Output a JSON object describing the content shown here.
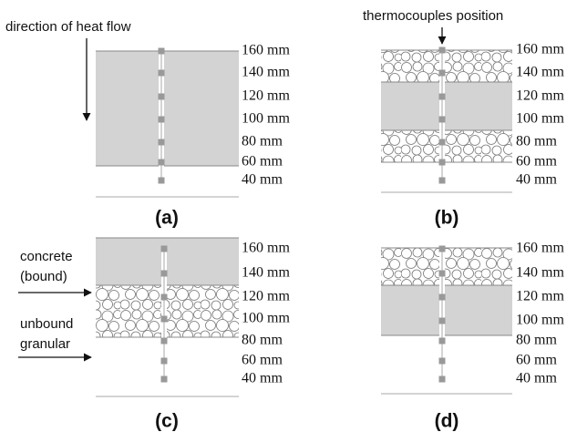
{
  "annotations": {
    "heat_flow": "direction of heat flow",
    "thermocouples": "thermocouples position",
    "concrete_1": "concrete",
    "concrete_2": "(bound)",
    "granular_1": "unbound",
    "granular_2": "granular"
  },
  "panels": [
    {
      "label": "(a)",
      "depths": [
        "160 mm",
        "140 mm",
        "120 mm",
        "100 mm",
        "80 mm",
        "60 mm",
        "40 mm"
      ]
    },
    {
      "label": "(b)",
      "depths": [
        "160 mm",
        "140 mm",
        "120 mm",
        "100 mm",
        "80 mm",
        "60 mm",
        "40 mm"
      ]
    },
    {
      "label": "(c)",
      "depths": [
        "160 mm",
        "140 mm",
        "120 mm",
        "100 mm",
        "80 mm",
        "60 mm",
        "40 mm"
      ]
    },
    {
      "label": "(d)",
      "depths": [
        "160 mm",
        "140 mm",
        "120 mm",
        "100 mm",
        "80 mm",
        "60 mm",
        "40 mm"
      ]
    }
  ]
}
